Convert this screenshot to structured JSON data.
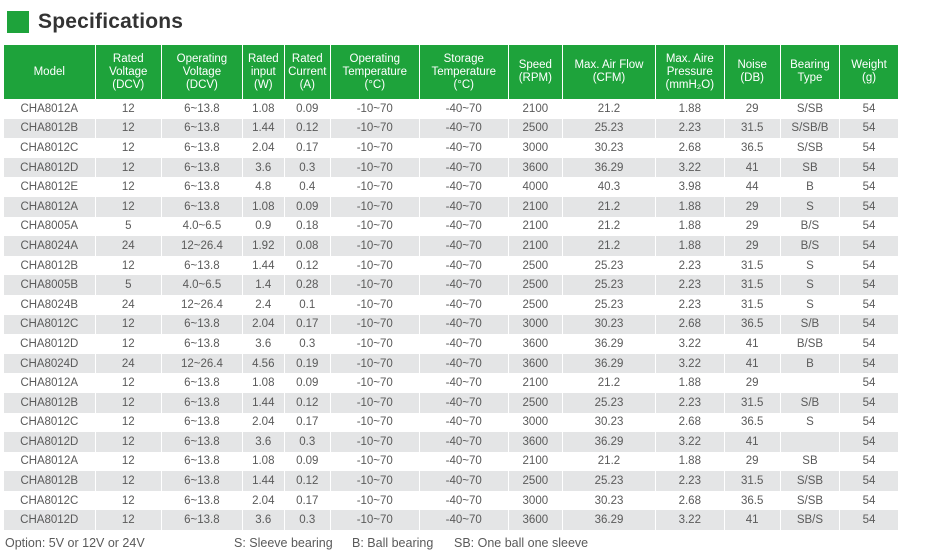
{
  "title": "Specifications",
  "colors": {
    "accent": "#1ea33b",
    "row_alt": "#e4e5e6",
    "text": "#5a5a5a"
  },
  "headers": [
    [
      "Model"
    ],
    [
      "Rated",
      "Voltage",
      "(DCV)"
    ],
    [
      "Operating",
      "Voltage",
      "(DCV)"
    ],
    [
      "Rated",
      "input",
      "(W)"
    ],
    [
      "Rated",
      "Current",
      "(A)"
    ],
    [
      "Operating",
      "Temperature",
      "(°C)"
    ],
    [
      "Storage",
      "Temperature",
      "(°C)"
    ],
    [
      "Speed",
      "(RPM)"
    ],
    [
      "Max. Air Flow",
      "(CFM)"
    ],
    [
      "Max. Aire",
      "Pressure",
      "(mmH₂O)"
    ],
    [
      "Noise",
      "(DB)"
    ],
    [
      "Bearing",
      "Type"
    ],
    [
      "Weight",
      "(g)"
    ]
  ],
  "rows": [
    [
      "CHA8012A",
      "12",
      "6~13.8",
      "1.08",
      "0.09",
      "-10~70",
      "-40~70",
      "2100",
      "21.2",
      "1.88",
      "29",
      "S/SB",
      "54"
    ],
    [
      "CHA8012B",
      "12",
      "6~13.8",
      "1.44",
      "0.12",
      "-10~70",
      "-40~70",
      "2500",
      "25.23",
      "2.23",
      "31.5",
      "S/SB/B",
      "54"
    ],
    [
      "CHA8012C",
      "12",
      "6~13.8",
      "2.04",
      "0.17",
      "-10~70",
      "-40~70",
      "3000",
      "30.23",
      "2.68",
      "36.5",
      "S/SB",
      "54"
    ],
    [
      "CHA8012D",
      "12",
      "6~13.8",
      "3.6",
      "0.3",
      "-10~70",
      "-40~70",
      "3600",
      "36.29",
      "3.22",
      "41",
      "SB",
      "54"
    ],
    [
      "CHA8012E",
      "12",
      "6~13.8",
      "4.8",
      "0.4",
      "-10~70",
      "-40~70",
      "4000",
      "40.3",
      "3.98",
      "44",
      "B",
      "54"
    ],
    [
      "CHA8012A",
      "12",
      "6~13.8",
      "1.08",
      "0.09",
      "-10~70",
      "-40~70",
      "2100",
      "21.2",
      "1.88",
      "29",
      "S",
      "54"
    ],
    [
      "CHA8005A",
      "5",
      "4.0~6.5",
      "0.9",
      "0.18",
      "-10~70",
      "-40~70",
      "2100",
      "21.2",
      "1.88",
      "29",
      "B/S",
      "54"
    ],
    [
      "CHA8024A",
      "24",
      "12~26.4",
      "1.92",
      "0.08",
      "-10~70",
      "-40~70",
      "2100",
      "21.2",
      "1.88",
      "29",
      "B/S",
      "54"
    ],
    [
      "CHA8012B",
      "12",
      "6~13.8",
      "1.44",
      "0.12",
      "-10~70",
      "-40~70",
      "2500",
      "25.23",
      "2.23",
      "31.5",
      "S",
      "54"
    ],
    [
      "CHA8005B",
      "5",
      "4.0~6.5",
      "1.4",
      "0.28",
      "-10~70",
      "-40~70",
      "2500",
      "25.23",
      "2.23",
      "31.5",
      "S",
      "54"
    ],
    [
      "CHA8024B",
      "24",
      "12~26.4",
      "2.4",
      "0.1",
      "-10~70",
      "-40~70",
      "2500",
      "25.23",
      "2.23",
      "31.5",
      "S",
      "54"
    ],
    [
      "CHA8012C",
      "12",
      "6~13.8",
      "2.04",
      "0.17",
      "-10~70",
      "-40~70",
      "3000",
      "30.23",
      "2.68",
      "36.5",
      "S/B",
      "54"
    ],
    [
      "CHA8012D",
      "12",
      "6~13.8",
      "3.6",
      "0.3",
      "-10~70",
      "-40~70",
      "3600",
      "36.29",
      "3.22",
      "41",
      "B/SB",
      "54"
    ],
    [
      "CHA8024D",
      "24",
      "12~26.4",
      "4.56",
      "0.19",
      "-10~70",
      "-40~70",
      "3600",
      "36.29",
      "3.22",
      "41",
      "B",
      "54"
    ],
    [
      "CHA8012A",
      "12",
      "6~13.8",
      "1.08",
      "0.09",
      "-10~70",
      "-40~70",
      "2100",
      "21.2",
      "1.88",
      "29",
      "",
      "54"
    ],
    [
      "CHA8012B",
      "12",
      "6~13.8",
      "1.44",
      "0.12",
      "-10~70",
      "-40~70",
      "2500",
      "25.23",
      "2.23",
      "31.5",
      "S/B",
      "54"
    ],
    [
      "CHA8012C",
      "12",
      "6~13.8",
      "2.04",
      "0.17",
      "-10~70",
      "-40~70",
      "3000",
      "30.23",
      "2.68",
      "36.5",
      "S",
      "54"
    ],
    [
      "CHA8012D",
      "12",
      "6~13.8",
      "3.6",
      "0.3",
      "-10~70",
      "-40~70",
      "3600",
      "36.29",
      "3.22",
      "41",
      "",
      "54"
    ],
    [
      "CHA8012A",
      "12",
      "6~13.8",
      "1.08",
      "0.09",
      "-10~70",
      "-40~70",
      "2100",
      "21.2",
      "1.88",
      "29",
      "SB",
      "54"
    ],
    [
      "CHA8012B",
      "12",
      "6~13.8",
      "1.44",
      "0.12",
      "-10~70",
      "-40~70",
      "2500",
      "25.23",
      "2.23",
      "31.5",
      "S/SB",
      "54"
    ],
    [
      "CHA8012C",
      "12",
      "6~13.8",
      "2.04",
      "0.17",
      "-10~70",
      "-40~70",
      "3000",
      "30.23",
      "2.68",
      "36.5",
      "S/SB",
      "54"
    ],
    [
      "CHA8012D",
      "12",
      "6~13.8",
      "3.6",
      "0.3",
      "-10~70",
      "-40~70",
      "3600",
      "36.29",
      "3.22",
      "41",
      "SB/S",
      "54"
    ]
  ],
  "legend": {
    "option": "Option: 5V or 12V or 24V",
    "sleeve": "S: Sleeve bearing",
    "ball": "B: Ball bearing",
    "one_each": "SB: One ball one sleeve"
  }
}
